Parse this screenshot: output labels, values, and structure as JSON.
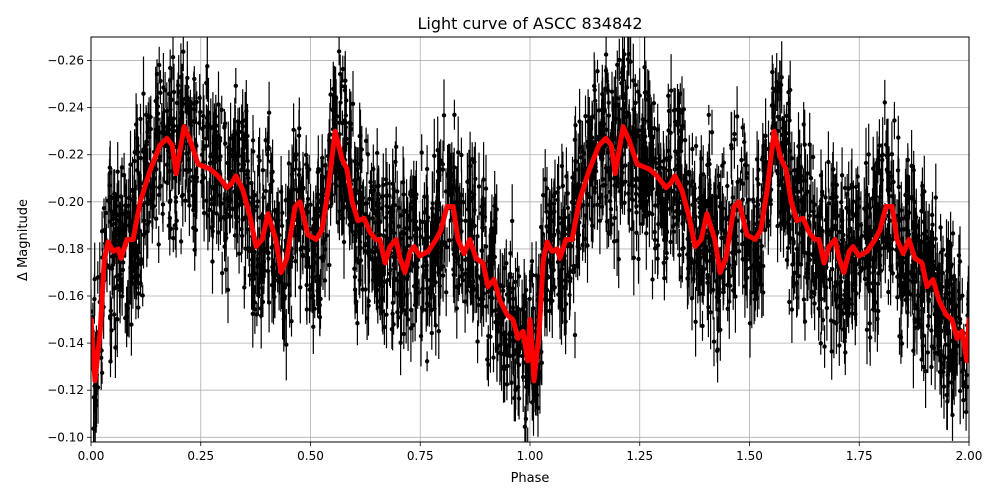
{
  "chart_data": {
    "type": "scatter",
    "title": "Light curve of ASCC 834842",
    "xlabel": "Phase",
    "ylabel": "Δ Magnitude",
    "xlim": [
      0,
      2
    ],
    "ylim": [
      -0.27,
      -0.098
    ],
    "y_inverted": true,
    "grid": true,
    "xticks": [
      0,
      0.25,
      0.5,
      0.75,
      1.0,
      1.25,
      1.5,
      1.75,
      2.0
    ],
    "xtick_labels": [
      "0.00",
      "0.25",
      "0.50",
      "0.75",
      "1.00",
      "1.25",
      "1.50",
      "1.75",
      "2.00"
    ],
    "yticks": [
      -0.26,
      -0.24,
      -0.22,
      -0.2,
      -0.18,
      -0.16,
      -0.14,
      -0.12,
      -0.1
    ],
    "ytick_labels": [
      "−0.26",
      "−0.24",
      "−0.22",
      "−0.20",
      "−0.18",
      "−0.16",
      "−0.14",
      "−0.12",
      "−0.10"
    ],
    "scatter_color": "#000000",
    "curve_color": "#ff0000",
    "curve_repeats_each_phase": true,
    "curve": {
      "phase": [
        0,
        0.009,
        0.021,
        0.03,
        0.039,
        0.05,
        0.062,
        0.068,
        0.082,
        0.096,
        0.112,
        0.134,
        0.157,
        0.173,
        0.185,
        0.194,
        0.203,
        0.212,
        0.226,
        0.244,
        0.271,
        0.289,
        0.31,
        0.321,
        0.33,
        0.346,
        0.362,
        0.376,
        0.39,
        0.403,
        0.421,
        0.433,
        0.446,
        0.465,
        0.476,
        0.494,
        0.513,
        0.526,
        0.54,
        0.556,
        0.572,
        0.583,
        0.595,
        0.608,
        0.622,
        0.636,
        0.649,
        0.658,
        0.67,
        0.681,
        0.695,
        0.704,
        0.715,
        0.727,
        0.736,
        0.749,
        0.768,
        0.786,
        0.797,
        0.811,
        0.825,
        0.836,
        0.85,
        0.863,
        0.877,
        0.893,
        0.904,
        0.918,
        0.932,
        0.948,
        0.961,
        0.973,
        0.984,
        0.995
      ],
      "magnitude": [
        -0.15,
        -0.124,
        -0.145,
        -0.175,
        -0.183,
        -0.179,
        -0.18,
        -0.176,
        -0.184,
        -0.184,
        -0.2,
        -0.213,
        -0.224,
        -0.227,
        -0.224,
        -0.212,
        -0.222,
        -0.232,
        -0.226,
        -0.216,
        -0.214,
        -0.211,
        -0.206,
        -0.208,
        -0.211,
        -0.205,
        -0.194,
        -0.181,
        -0.184,
        -0.195,
        -0.184,
        -0.17,
        -0.176,
        -0.198,
        -0.2,
        -0.186,
        -0.184,
        -0.188,
        -0.205,
        -0.23,
        -0.218,
        -0.214,
        -0.2,
        -0.192,
        -0.193,
        -0.187,
        -0.184,
        -0.184,
        -0.174,
        -0.181,
        -0.184,
        -0.176,
        -0.17,
        -0.179,
        -0.181,
        -0.177,
        -0.179,
        -0.184,
        -0.188,
        -0.198,
        -0.198,
        -0.184,
        -0.178,
        -0.184,
        -0.176,
        -0.174,
        -0.164,
        -0.167,
        -0.158,
        -0.152,
        -0.15,
        -0.142,
        -0.145,
        -0.1325
      ]
    }
  }
}
